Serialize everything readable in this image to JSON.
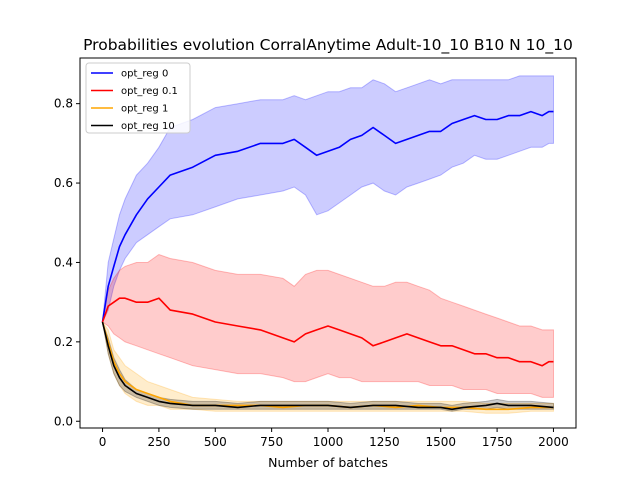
{
  "chart_data": {
    "type": "line",
    "title": "Probabilities evolution CorralAnytime Adult-10_10 B10 N 10_10",
    "xlabel": "Number of batches",
    "ylabel": "",
    "xlim": [
      -100,
      2100
    ],
    "ylim": [
      -0.017,
      0.915
    ],
    "xticks": [
      0,
      250,
      500,
      750,
      1000,
      1250,
      1500,
      1750,
      2000
    ],
    "yticks": [
      0.0,
      0.2,
      0.4,
      0.6,
      0.8
    ],
    "xtick_labels": [
      "0",
      "250",
      "500",
      "750",
      "1000",
      "1250",
      "1500",
      "1750",
      "2000"
    ],
    "ytick_labels": [
      "0.0",
      "0.2",
      "0.4",
      "0.6",
      "0.8"
    ],
    "grid": false,
    "legend_position": "top-left",
    "series": [
      {
        "name": "opt_reg 0",
        "color": "#0000ff",
        "x": [
          0,
          25,
          50,
          75,
          100,
          150,
          200,
          250,
          300,
          400,
          500,
          600,
          700,
          800,
          850,
          900,
          950,
          1000,
          1050,
          1100,
          1150,
          1200,
          1250,
          1300,
          1350,
          1400,
          1450,
          1500,
          1550,
          1600,
          1650,
          1700,
          1750,
          1800,
          1850,
          1900,
          1950,
          1980,
          2000
        ],
        "values": [
          0.25,
          0.34,
          0.39,
          0.44,
          0.47,
          0.52,
          0.56,
          0.59,
          0.62,
          0.64,
          0.67,
          0.68,
          0.7,
          0.7,
          0.71,
          0.69,
          0.67,
          0.68,
          0.69,
          0.71,
          0.72,
          0.74,
          0.72,
          0.7,
          0.71,
          0.72,
          0.73,
          0.73,
          0.75,
          0.76,
          0.77,
          0.76,
          0.76,
          0.77,
          0.77,
          0.78,
          0.77,
          0.78,
          0.78
        ],
        "lower": [
          0.25,
          0.28,
          0.34,
          0.38,
          0.41,
          0.45,
          0.47,
          0.49,
          0.51,
          0.52,
          0.54,
          0.56,
          0.57,
          0.58,
          0.59,
          0.57,
          0.52,
          0.53,
          0.55,
          0.57,
          0.59,
          0.6,
          0.58,
          0.57,
          0.59,
          0.6,
          0.61,
          0.62,
          0.64,
          0.65,
          0.67,
          0.66,
          0.66,
          0.67,
          0.68,
          0.69,
          0.69,
          0.7,
          0.7
        ],
        "upper": [
          0.25,
          0.4,
          0.46,
          0.52,
          0.56,
          0.62,
          0.65,
          0.69,
          0.74,
          0.76,
          0.79,
          0.8,
          0.81,
          0.81,
          0.82,
          0.81,
          0.82,
          0.83,
          0.83,
          0.84,
          0.84,
          0.86,
          0.85,
          0.83,
          0.84,
          0.85,
          0.86,
          0.85,
          0.86,
          0.86,
          0.86,
          0.86,
          0.86,
          0.86,
          0.87,
          0.87,
          0.87,
          0.87,
          0.87
        ]
      },
      {
        "name": "opt_reg 0.1",
        "color": "#ff0000",
        "x": [
          0,
          25,
          50,
          75,
          100,
          150,
          200,
          250,
          300,
          400,
          500,
          600,
          700,
          800,
          850,
          900,
          950,
          1000,
          1050,
          1100,
          1150,
          1200,
          1250,
          1300,
          1350,
          1400,
          1450,
          1500,
          1550,
          1600,
          1650,
          1700,
          1750,
          1800,
          1850,
          1900,
          1950,
          1980,
          2000
        ],
        "values": [
          0.25,
          0.29,
          0.3,
          0.31,
          0.31,
          0.3,
          0.3,
          0.31,
          0.28,
          0.27,
          0.25,
          0.24,
          0.23,
          0.21,
          0.2,
          0.22,
          0.23,
          0.24,
          0.23,
          0.22,
          0.21,
          0.19,
          0.2,
          0.21,
          0.22,
          0.21,
          0.2,
          0.19,
          0.19,
          0.18,
          0.17,
          0.17,
          0.16,
          0.16,
          0.15,
          0.15,
          0.14,
          0.15,
          0.15
        ],
        "lower": [
          0.25,
          0.24,
          0.22,
          0.21,
          0.2,
          0.19,
          0.18,
          0.17,
          0.16,
          0.14,
          0.13,
          0.12,
          0.12,
          0.11,
          0.1,
          0.1,
          0.11,
          0.12,
          0.11,
          0.11,
          0.1,
          0.1,
          0.1,
          0.1,
          0.1,
          0.1,
          0.09,
          0.09,
          0.09,
          0.08,
          0.08,
          0.08,
          0.07,
          0.07,
          0.07,
          0.07,
          0.06,
          0.06,
          0.06
        ],
        "upper": [
          0.25,
          0.33,
          0.36,
          0.38,
          0.39,
          0.4,
          0.4,
          0.42,
          0.41,
          0.4,
          0.38,
          0.37,
          0.37,
          0.36,
          0.34,
          0.37,
          0.38,
          0.38,
          0.37,
          0.36,
          0.35,
          0.34,
          0.34,
          0.35,
          0.35,
          0.34,
          0.33,
          0.31,
          0.3,
          0.29,
          0.28,
          0.27,
          0.26,
          0.25,
          0.24,
          0.24,
          0.23,
          0.23,
          0.23
        ]
      },
      {
        "name": "opt_reg 1",
        "color": "#ffa500",
        "x": [
          0,
          25,
          50,
          75,
          100,
          150,
          200,
          250,
          300,
          400,
          500,
          600,
          700,
          800,
          900,
          1000,
          1100,
          1200,
          1300,
          1400,
          1500,
          1550,
          1600,
          1700,
          1800,
          1900,
          2000
        ],
        "values": [
          0.25,
          0.2,
          0.15,
          0.12,
          0.1,
          0.08,
          0.07,
          0.06,
          0.05,
          0.04,
          0.04,
          0.04,
          0.04,
          0.035,
          0.04,
          0.04,
          0.035,
          0.04,
          0.035,
          0.04,
          0.035,
          0.035,
          0.035,
          0.03,
          0.03,
          0.035,
          0.035
        ],
        "lower": [
          0.25,
          0.17,
          0.12,
          0.09,
          0.07,
          0.05,
          0.04,
          0.04,
          0.03,
          0.03,
          0.025,
          0.025,
          0.025,
          0.025,
          0.025,
          0.025,
          0.025,
          0.025,
          0.025,
          0.025,
          0.025,
          0.025,
          0.025,
          0.02,
          0.02,
          0.025,
          0.025
        ],
        "upper": [
          0.25,
          0.23,
          0.18,
          0.16,
          0.14,
          0.12,
          0.1,
          0.09,
          0.08,
          0.06,
          0.055,
          0.05,
          0.05,
          0.05,
          0.05,
          0.05,
          0.05,
          0.05,
          0.05,
          0.05,
          0.05,
          0.05,
          0.05,
          0.045,
          0.045,
          0.045,
          0.045
        ]
      },
      {
        "name": "opt_reg 10",
        "color": "#000000",
        "x": [
          0,
          25,
          50,
          75,
          100,
          150,
          200,
          250,
          300,
          400,
          500,
          600,
          700,
          800,
          900,
          1000,
          1100,
          1200,
          1300,
          1400,
          1500,
          1550,
          1600,
          1700,
          1750,
          1800,
          1900,
          2000
        ],
        "values": [
          0.25,
          0.19,
          0.14,
          0.11,
          0.09,
          0.07,
          0.06,
          0.05,
          0.045,
          0.04,
          0.04,
          0.035,
          0.04,
          0.04,
          0.04,
          0.04,
          0.035,
          0.04,
          0.04,
          0.035,
          0.035,
          0.03,
          0.035,
          0.04,
          0.045,
          0.04,
          0.04,
          0.035
        ],
        "lower": [
          0.25,
          0.17,
          0.12,
          0.09,
          0.075,
          0.06,
          0.05,
          0.04,
          0.035,
          0.03,
          0.03,
          0.03,
          0.03,
          0.03,
          0.03,
          0.03,
          0.03,
          0.03,
          0.03,
          0.03,
          0.03,
          0.025,
          0.03,
          0.03,
          0.035,
          0.03,
          0.03,
          0.03
        ],
        "upper": [
          0.25,
          0.21,
          0.16,
          0.13,
          0.105,
          0.08,
          0.07,
          0.06,
          0.055,
          0.05,
          0.05,
          0.045,
          0.05,
          0.05,
          0.05,
          0.05,
          0.045,
          0.05,
          0.05,
          0.045,
          0.045,
          0.04,
          0.045,
          0.05,
          0.055,
          0.05,
          0.05,
          0.045
        ]
      }
    ]
  }
}
